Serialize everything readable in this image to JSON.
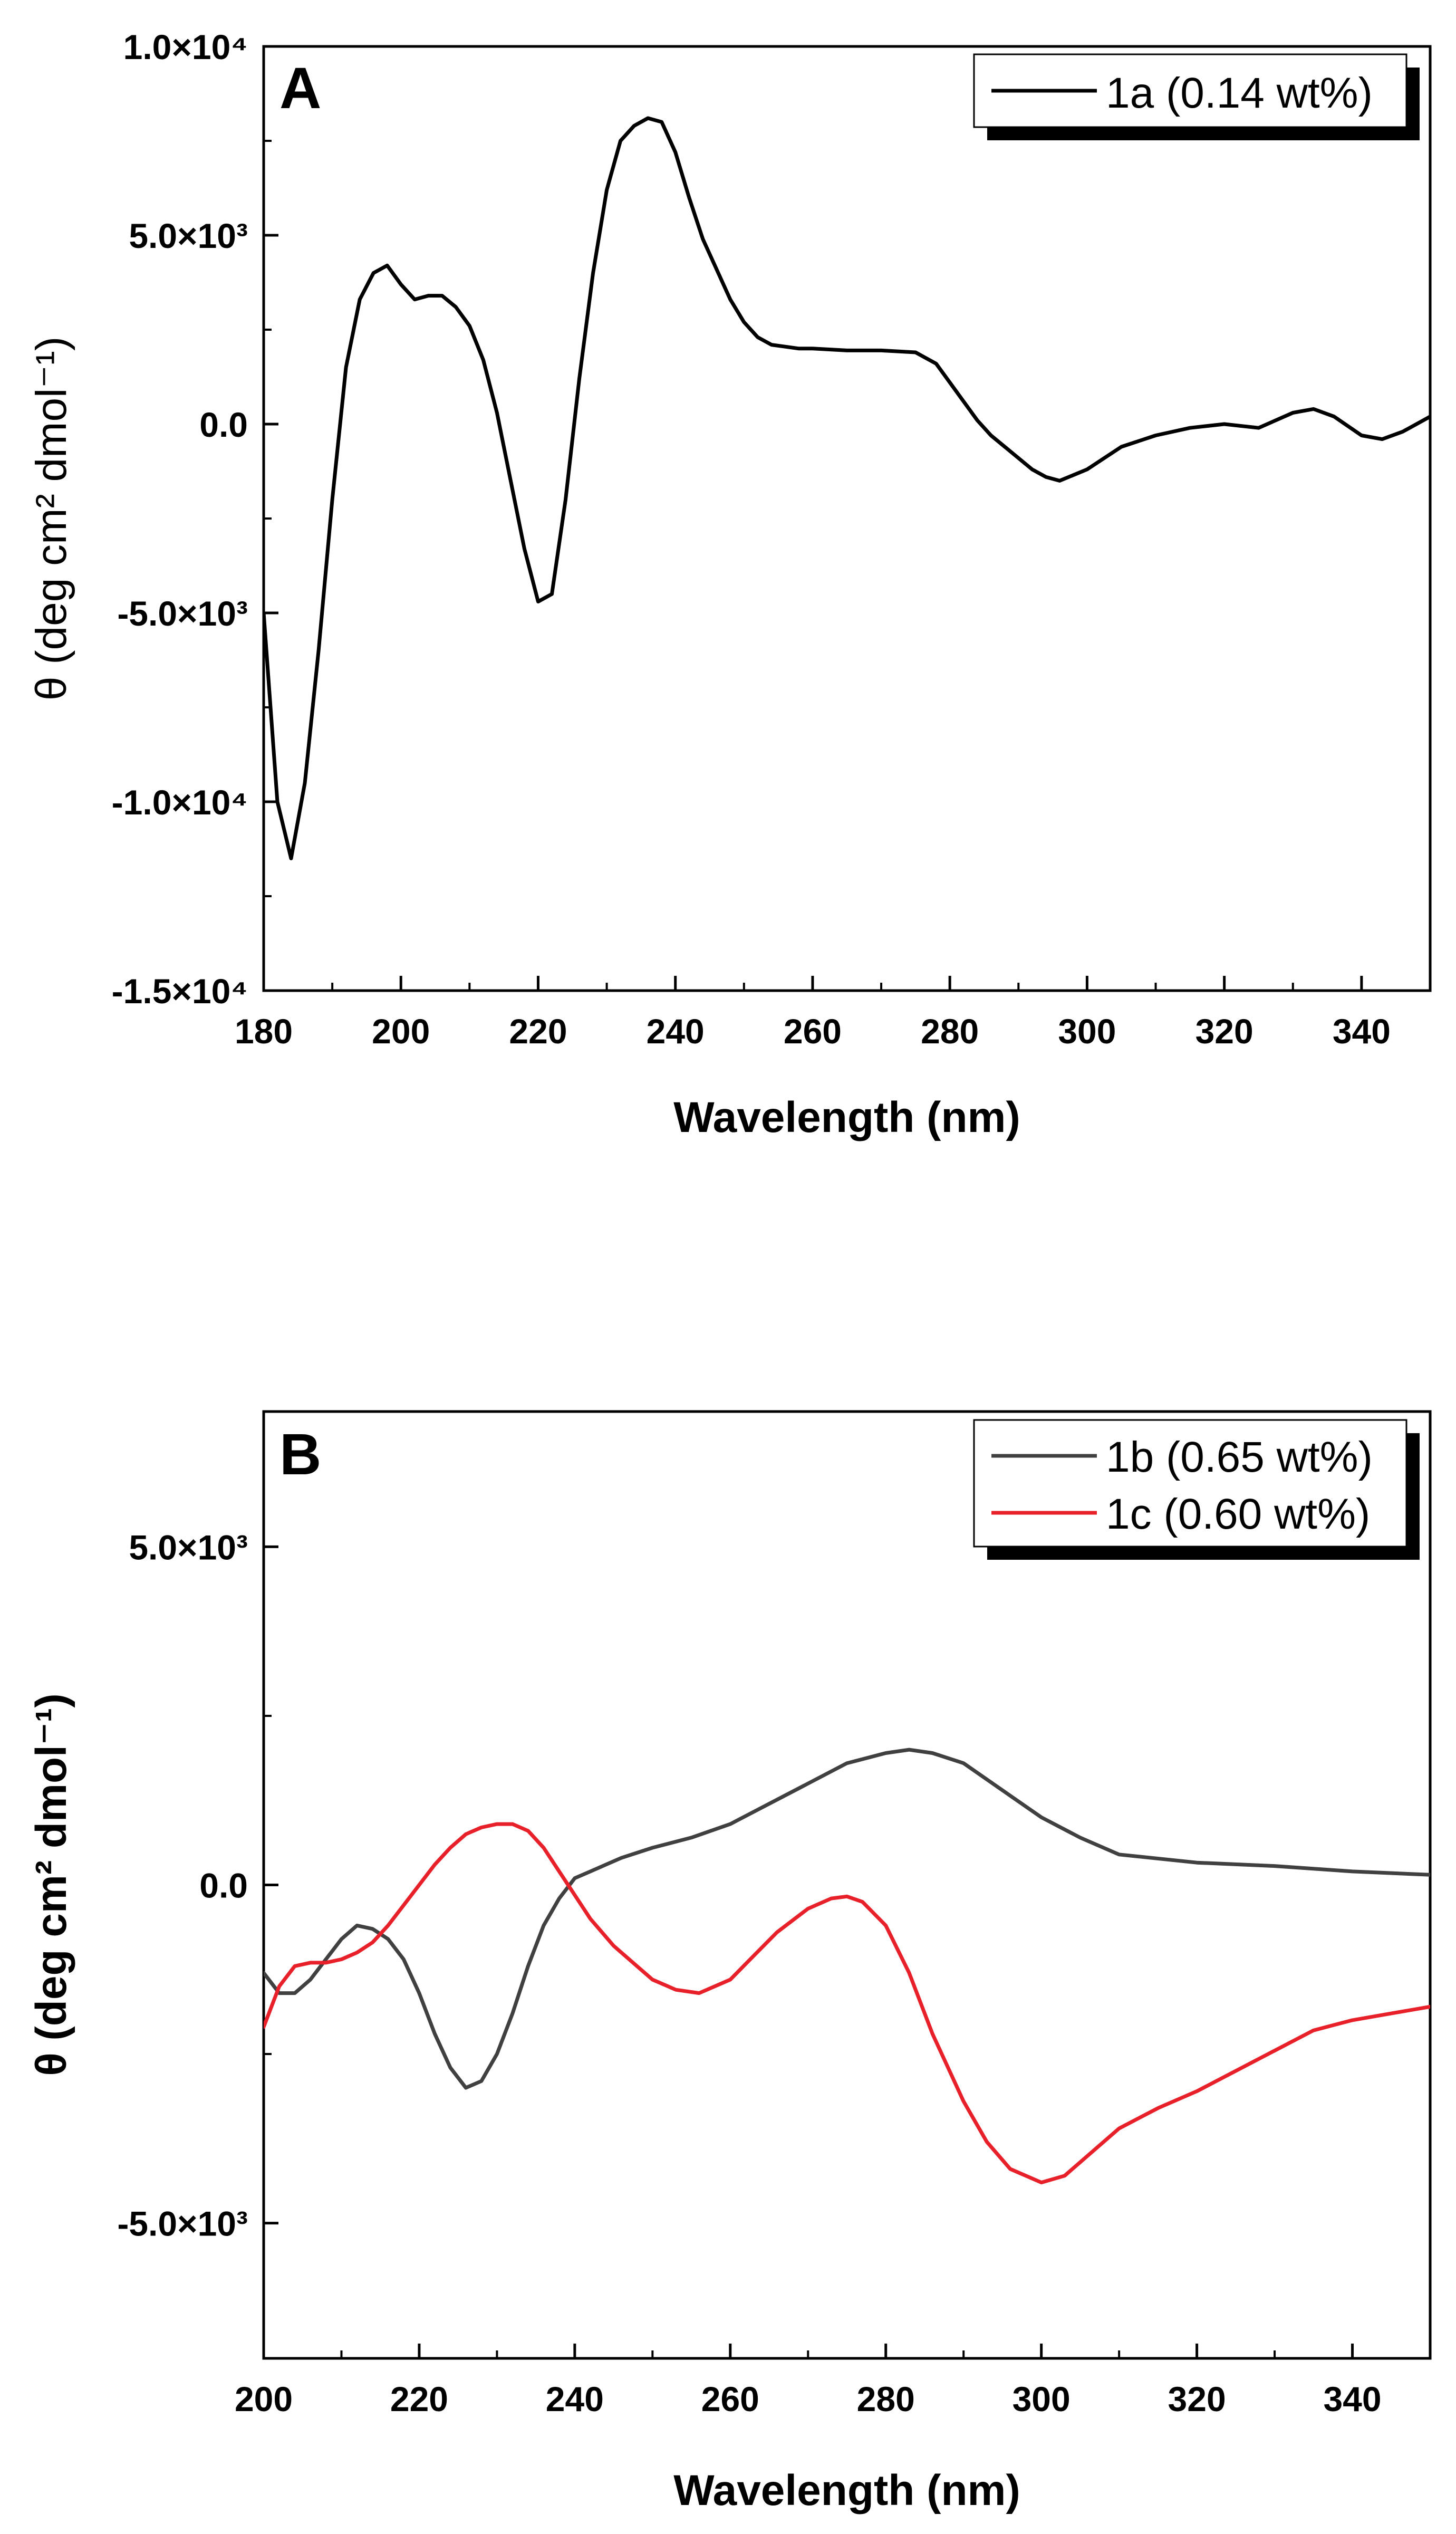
{
  "figure": {
    "panels": [
      "A",
      "B"
    ]
  },
  "chart_data": [
    {
      "panel_label": "A",
      "type": "line",
      "title": "",
      "xlabel": "Wavelength (nm)",
      "ylabel": "θ (deg cm² dmol⁻¹)",
      "xlim": [
        180,
        350
      ],
      "ylim": [
        -15000,
        10000
      ],
      "xticks": [
        180,
        200,
        220,
        240,
        260,
        280,
        300,
        320,
        340
      ],
      "xtick_labels": [
        "180",
        "200",
        "220",
        "240",
        "260",
        "280",
        "300",
        "320",
        "340"
      ],
      "yticks": [
        -15000,
        -10000,
        -5000,
        0,
        5000,
        10000
      ],
      "ytick_labels": [
        "-1.5×10⁴",
        "-1.0×10⁴",
        "-5.0×10³",
        "0.0",
        "5.0×10³",
        "1.0×10⁴"
      ],
      "legend_position": "top-right",
      "series": [
        {
          "name": "1a (0.14 wt%)",
          "color": "#000000",
          "x": [
            180,
            182,
            184,
            186,
            188,
            190,
            192,
            194,
            196,
            198,
            200,
            202,
            204,
            206,
            208,
            210,
            212,
            214,
            216,
            218,
            220,
            222,
            224,
            226,
            228,
            230,
            232,
            234,
            236,
            238,
            240,
            242,
            244,
            246,
            248,
            250,
            252,
            254,
            256,
            258,
            260,
            265,
            270,
            275,
            278,
            280,
            282,
            284,
            286,
            288,
            290,
            292,
            294,
            296,
            300,
            305,
            310,
            315,
            320,
            325,
            330,
            333,
            336,
            340,
            343,
            346,
            350
          ],
          "y": [
            -5000,
            -10000,
            -11500,
            -9500,
            -6000,
            -2000,
            1500,
            3300,
            4000,
            4200,
            3700,
            3300,
            3400,
            3400,
            3100,
            2600,
            1700,
            300,
            -1500,
            -3300,
            -4700,
            -4500,
            -2000,
            1200,
            4000,
            6200,
            7500,
            7900,
            8100,
            8000,
            7200,
            6000,
            4900,
            4100,
            3300,
            2700,
            2300,
            2100,
            2050,
            2000,
            2000,
            1950,
            1950,
            1900,
            1600,
            1100,
            600,
            100,
            -300,
            -600,
            -900,
            -1200,
            -1400,
            -1500,
            -1200,
            -600,
            -300,
            -100,
            0,
            -100,
            300,
            400,
            200,
            -300,
            -400,
            -200,
            200
          ]
        }
      ]
    },
    {
      "panel_label": "B",
      "type": "line",
      "title": "",
      "xlabel": "Wavelength (nm)",
      "ylabel": "θ (deg cm² dmol⁻¹)",
      "xlim": [
        200,
        350
      ],
      "ylim": [
        -7000,
        7000
      ],
      "xticks": [
        200,
        220,
        240,
        260,
        280,
        300,
        320,
        340
      ],
      "xtick_labels": [
        "200",
        "220",
        "240",
        "260",
        "280",
        "300",
        "320",
        "340"
      ],
      "yticks": [
        -5000,
        0,
        5000
      ],
      "ytick_labels": [
        "-5.0×10³",
        "0.0",
        "5.0×10³"
      ],
      "legend_position": "top-right",
      "series": [
        {
          "name": "1b (0.65 wt%)",
          "color": "#404040",
          "x": [
            200,
            202,
            204,
            206,
            208,
            210,
            212,
            214,
            216,
            218,
            220,
            222,
            224,
            226,
            228,
            230,
            232,
            234,
            236,
            238,
            240,
            242,
            246,
            250,
            255,
            260,
            265,
            270,
            275,
            280,
            283,
            286,
            290,
            295,
            300,
            305,
            310,
            320,
            330,
            340,
            350
          ],
          "y": [
            -1300,
            -1600,
            -1600,
            -1400,
            -1100,
            -800,
            -600,
            -650,
            -800,
            -1100,
            -1600,
            -2200,
            -2700,
            -3000,
            -2900,
            -2500,
            -1900,
            -1200,
            -600,
            -200,
            100,
            200,
            400,
            550,
            700,
            900,
            1200,
            1500,
            1800,
            1950,
            2000,
            1950,
            1800,
            1400,
            1000,
            700,
            450,
            330,
            280,
            200,
            150
          ]
        },
        {
          "name": "1c (0.60 wt%)",
          "color": "#e8202a",
          "x": [
            200,
            202,
            204,
            206,
            208,
            210,
            212,
            214,
            216,
            218,
            220,
            222,
            224,
            226,
            228,
            230,
            232,
            234,
            236,
            238,
            240,
            242,
            245,
            248,
            250,
            253,
            256,
            260,
            263,
            266,
            270,
            273,
            275,
            277,
            280,
            283,
            286,
            290,
            293,
            296,
            300,
            303,
            306,
            310,
            315,
            320,
            325,
            330,
            335,
            340,
            345,
            350
          ],
          "y": [
            -2100,
            -1500,
            -1200,
            -1150,
            -1150,
            -1100,
            -1000,
            -850,
            -600,
            -300,
            0,
            300,
            550,
            750,
            850,
            900,
            900,
            800,
            550,
            200,
            -150,
            -500,
            -900,
            -1200,
            -1400,
            -1550,
            -1600,
            -1400,
            -1050,
            -700,
            -350,
            -200,
            -170,
            -250,
            -600,
            -1300,
            -2200,
            -3200,
            -3800,
            -4200,
            -4400,
            -4300,
            -4000,
            -3600,
            -3300,
            -3050,
            -2750,
            -2450,
            -2150,
            -2000,
            -1900,
            -1800
          ]
        }
      ]
    }
  ]
}
